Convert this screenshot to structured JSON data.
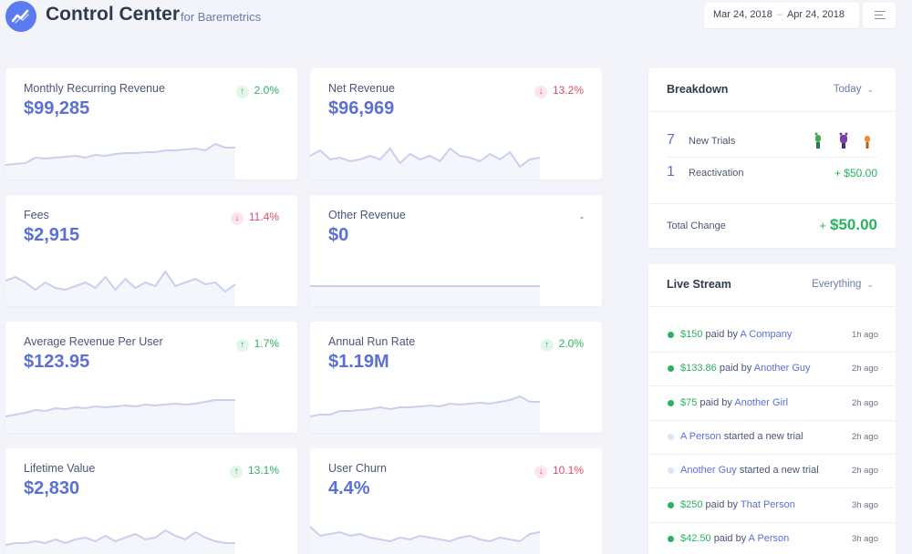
{
  "header": {
    "title": "Control Center",
    "subtitle": "for Baremetrics",
    "date_start": "Mar 24, 2018",
    "date_sep": "–",
    "date_end": "Apr 24, 2018",
    "menu_icon": "hamburger-icon",
    "logo_icon": "baremetrics-logo-icon"
  },
  "colors": {
    "accent": "#5a6fd8",
    "positive": "#27b35e",
    "negative": "#e04a6a",
    "sparkline": "#c9cff0"
  },
  "metrics": [
    {
      "name": "Monthly Recurring Revenue",
      "value": "$99,285",
      "change": "2.0%",
      "direction": "up",
      "spark": [
        28,
        27,
        26,
        20,
        21,
        20,
        19,
        18,
        20,
        17,
        18,
        16,
        15,
        15,
        14,
        14,
        12,
        12,
        11,
        10,
        12,
        5,
        9,
        9
      ]
    },
    {
      "name": "Net Revenue",
      "value": "$96,969",
      "change": "13.2%",
      "direction": "down",
      "spark": [
        18,
        12,
        22,
        20,
        24,
        22,
        18,
        22,
        10,
        26,
        16,
        22,
        18,
        24,
        10,
        18,
        20,
        24,
        16,
        22,
        14,
        30,
        22,
        20
      ]
    },
    {
      "name": "Fees",
      "value": "$2,915",
      "change": "11.4%",
      "direction": "down",
      "spark": [
        16,
        12,
        18,
        26,
        18,
        24,
        26,
        22,
        18,
        24,
        12,
        26,
        14,
        24,
        18,
        22,
        6,
        22,
        18,
        14,
        20,
        18,
        28,
        20
      ]
    },
    {
      "name": "Other Revenue",
      "value": "$0",
      "change": "-",
      "direction": "neutral",
      "spark": [
        22,
        22,
        22,
        22,
        22,
        22,
        22,
        22,
        22,
        22,
        22,
        22,
        22,
        22,
        22,
        22,
        22,
        22,
        22,
        22,
        22,
        22,
        22,
        22
      ]
    },
    {
      "name": "Average Revenue Per User",
      "value": "$123.95",
      "change": "1.7%",
      "direction": "up",
      "spark": [
        26,
        24,
        22,
        19,
        20,
        17,
        18,
        16,
        17,
        15,
        16,
        15,
        14,
        15,
        13,
        14,
        13,
        12,
        13,
        12,
        10,
        8,
        8,
        8
      ]
    },
    {
      "name": "Annual Run Rate",
      "value": "$1.19M",
      "change": "2.0%",
      "direction": "up",
      "spark": [
        26,
        24,
        24,
        20,
        20,
        19,
        18,
        16,
        18,
        16,
        16,
        15,
        14,
        15,
        12,
        13,
        12,
        11,
        12,
        10,
        8,
        4,
        10,
        10
      ]
    },
    {
      "name": "Lifetime Value",
      "value": "$2,830",
      "change": "13.1%",
      "direction": "up",
      "spark": [
        28,
        26,
        26,
        24,
        26,
        22,
        26,
        22,
        20,
        24,
        18,
        24,
        20,
        16,
        22,
        20,
        12,
        18,
        22,
        14,
        20,
        24,
        26,
        26
      ]
    },
    {
      "name": "User Churn",
      "value": "4.4%",
      "change": "10.1%",
      "direction": "down",
      "spark": [
        8,
        18,
        16,
        14,
        18,
        16,
        20,
        22,
        24,
        20,
        22,
        18,
        20,
        22,
        24,
        20,
        18,
        22,
        24,
        20,
        22,
        24,
        16,
        14
      ]
    }
  ],
  "breakdown": {
    "title": "Breakdown",
    "filter": "Today",
    "rows": [
      {
        "count": "7",
        "label": "New Trials",
        "amount": ""
      },
      {
        "count": "1",
        "label": "Reactivation",
        "amount": "+ $50.00"
      }
    ],
    "total_label": "Total Change",
    "total_sign": "+",
    "total_amount": "$50.00"
  },
  "live_stream": {
    "title": "Live Stream",
    "filter": "Everything",
    "items": [
      {
        "type": "payment",
        "amount": "$150",
        "verb": "paid by",
        "who": "A Company",
        "time": "1h ago"
      },
      {
        "type": "payment",
        "amount": "$133.86",
        "verb": "paid by",
        "who": "Another Guy",
        "time": "2h ago"
      },
      {
        "type": "payment",
        "amount": "$75",
        "verb": "paid by",
        "who": "Another Girl",
        "time": "2h ago"
      },
      {
        "type": "trial",
        "amount": "",
        "verb": "started a new trial",
        "who": "A Person",
        "time": "2h ago"
      },
      {
        "type": "trial",
        "amount": "",
        "verb": "started a new trial",
        "who": "Another Guy",
        "time": "2h ago"
      },
      {
        "type": "payment",
        "amount": "$250",
        "verb": "paid by",
        "who": "That Person",
        "time": "3h ago"
      },
      {
        "type": "payment",
        "amount": "$42.50",
        "verb": "paid by",
        "who": "A Person",
        "time": "3h ago"
      }
    ]
  }
}
